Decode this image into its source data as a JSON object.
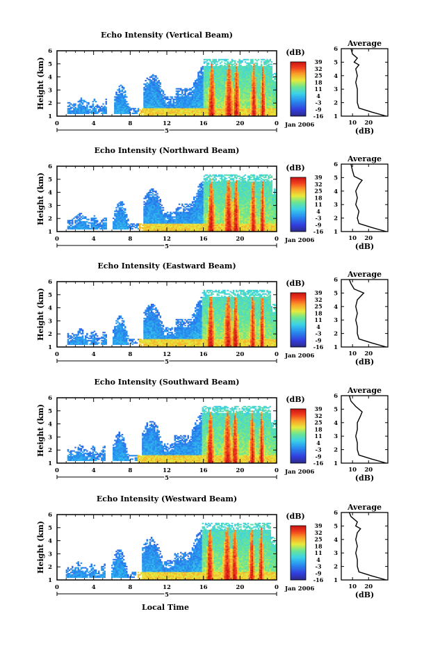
{
  "chart_data": {
    "type": "heatmap",
    "y_label": "Height (km)",
    "y_range": [
      1,
      6
    ],
    "y_ticks": [
      "1",
      "2",
      "3",
      "4",
      "5",
      "6"
    ],
    "x_label": "Local Time",
    "x_ticks": [
      "0",
      "4",
      "8",
      "12",
      "16",
      "20",
      "0"
    ],
    "x_sub_label": "5",
    "x_date_label": "Jan 2006",
    "colorbar_unit": "(dB)",
    "colorbar_ticks": [
      "-16",
      "-9",
      "-3",
      "4",
      "11",
      "18",
      "25",
      "32",
      "39"
    ],
    "colorbar_range": [
      -16,
      39
    ],
    "avg_title": "Average",
    "avg_xlabel": "(dB)",
    "avg_xticks": [
      "10",
      "20"
    ],
    "avg_yticks": [
      "1",
      "2",
      "3",
      "4",
      "5",
      "6"
    ],
    "panels": [
      {
        "title": "Echo Intensity (Vertical Beam)",
        "average_profile": {
          "height_km": [
            1.0,
            1.3,
            1.6,
            2.0,
            2.5,
            3.0,
            3.5,
            4.0,
            4.5,
            4.8,
            5.0,
            5.3,
            5.6,
            6.0
          ],
          "intensity_db": [
            31,
            22,
            14,
            13,
            13,
            13,
            12,
            13,
            12,
            14,
            11,
            13,
            10,
            9
          ]
        }
      },
      {
        "title": "Echo Intensity (Northward Beam)",
        "average_profile": {
          "height_km": [
            1.0,
            1.3,
            1.6,
            2.0,
            2.5,
            3.0,
            3.5,
            4.0,
            4.5,
            4.8,
            5.1,
            5.5,
            6.0
          ],
          "intensity_db": [
            31,
            22,
            14,
            13,
            14,
            12,
            13,
            12,
            14,
            16,
            11,
            10,
            9
          ]
        }
      },
      {
        "title": "Echo Intensity (Eastward Beam)",
        "average_profile": {
          "height_km": [
            1.0,
            1.3,
            1.6,
            2.0,
            2.5,
            3.0,
            3.5,
            4.0,
            4.5,
            5.0,
            5.3,
            5.7,
            6.0
          ],
          "intensity_db": [
            31,
            22,
            14,
            13,
            13,
            12,
            13,
            12,
            13,
            17,
            11,
            9,
            8
          ]
        }
      },
      {
        "title": "Echo Intensity (Southward Beam)",
        "average_profile": {
          "height_km": [
            1.0,
            1.3,
            1.6,
            2.0,
            2.5,
            3.0,
            3.5,
            4.0,
            4.5,
            4.8,
            5.2,
            5.6,
            6.0
          ],
          "intensity_db": [
            31,
            22,
            14,
            13,
            13,
            12,
            13,
            13,
            15,
            16,
            12,
            9,
            8
          ]
        }
      },
      {
        "title": "Echo Intensity (Westward Beam)",
        "average_profile": {
          "height_km": [
            1.0,
            1.3,
            1.6,
            2.0,
            2.5,
            3.0,
            3.5,
            4.0,
            4.5,
            4.8,
            5.0,
            5.3,
            5.7,
            6.0
          ],
          "intensity_db": [
            31,
            22,
            14,
            13,
            13,
            12,
            13,
            12,
            13,
            15,
            12,
            13,
            9,
            8
          ]
        }
      }
    ]
  }
}
